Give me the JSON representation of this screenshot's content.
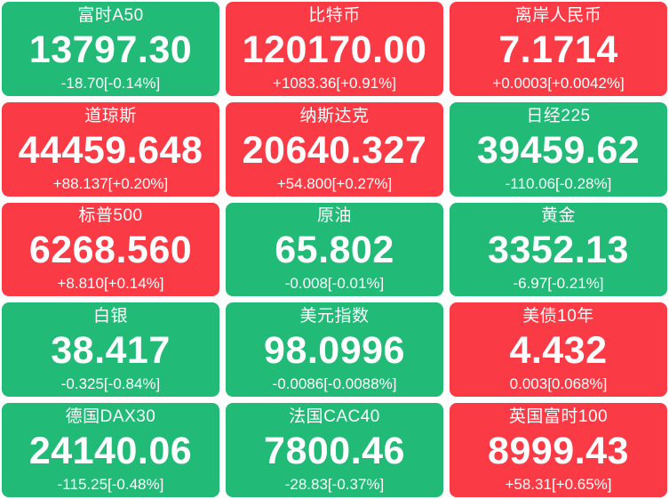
{
  "colors": {
    "up_red": "#fa3b45",
    "down_green": "#21ba77",
    "text": "#ffffff",
    "page_background": "#ffffff"
  },
  "board": {
    "columns": 3,
    "rows": 5,
    "tiles": [
      {
        "name": "富时A50",
        "value": "13797.30",
        "change": "-18.70[-0.14%]",
        "trend": "down"
      },
      {
        "name": "比特币",
        "value": "120170.00",
        "change": "+1083.36[+0.91%]",
        "trend": "up"
      },
      {
        "name": "离岸人民币",
        "value": "7.1714",
        "change": "+0.0003[+0.0042%]",
        "trend": "up"
      },
      {
        "name": "道琼斯",
        "value": "44459.648",
        "change": "+88.137[+0.20%]",
        "trend": "up"
      },
      {
        "name": "纳斯达克",
        "value": "20640.327",
        "change": "+54.800[+0.27%]",
        "trend": "up"
      },
      {
        "name": "日经225",
        "value": "39459.62",
        "change": "-110.06[-0.28%]",
        "trend": "down"
      },
      {
        "name": "标普500",
        "value": "6268.560",
        "change": "+8.810[+0.14%]",
        "trend": "up"
      },
      {
        "name": "原油",
        "value": "65.802",
        "change": "-0.008[-0.01%]",
        "trend": "down"
      },
      {
        "name": "黄金",
        "value": "3352.13",
        "change": "-6.97[-0.21%]",
        "trend": "down"
      },
      {
        "name": "白银",
        "value": "38.417",
        "change": "-0.325[-0.84%]",
        "trend": "down"
      },
      {
        "name": "美元指数",
        "value": "98.0996",
        "change": "-0.0086[-0.0088%]",
        "trend": "down"
      },
      {
        "name": "美债10年",
        "value": "4.432",
        "change": "0.003[0.068%]",
        "trend": "up"
      },
      {
        "name": "德国DAX30",
        "value": "24140.06",
        "change": "-115.25[-0.48%]",
        "trend": "down"
      },
      {
        "name": "法国CAC40",
        "value": "7800.46",
        "change": "-28.83[-0.37%]",
        "trend": "down"
      },
      {
        "name": "英国富时100",
        "value": "8999.43",
        "change": "+58.31[+0.65%]",
        "trend": "up"
      }
    ]
  }
}
